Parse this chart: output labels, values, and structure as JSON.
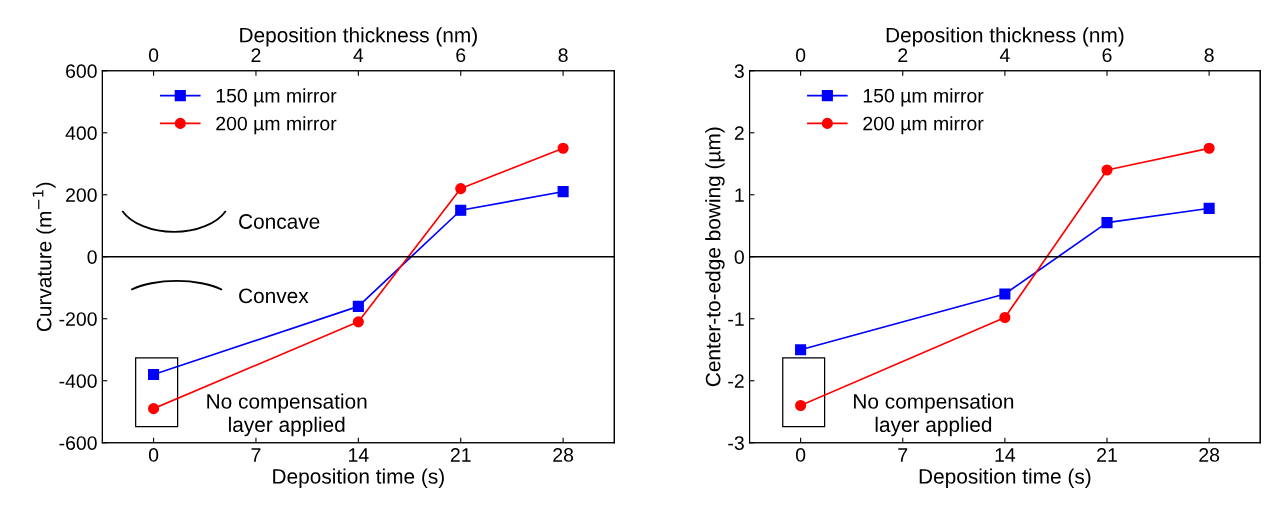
{
  "chart_data": [
    {
      "type": "line",
      "xlabel": "Deposition time (s)",
      "ylabel": "Curvature (m$^{−1}$)",
      "x2label": "Deposition thickness (nm)",
      "x": [
        0,
        14,
        21,
        28
      ],
      "xlim": [
        -3.5,
        31.5
      ],
      "xticks": [
        0,
        7,
        14,
        21,
        28
      ],
      "x2lim": [
        -1,
        9
      ],
      "x2ticks": [
        0,
        2,
        4,
        6,
        8
      ],
      "ylim": [
        -600,
        600
      ],
      "yticks": [
        -600,
        -400,
        -200,
        0,
        200,
        400,
        600
      ],
      "legend": "top left",
      "grid": false,
      "series": [
        {
          "name": "150 µm mirror",
          "color": "#0000ff",
          "marker": "square",
          "values": [
            -380,
            -160,
            150,
            210
          ]
        },
        {
          "name": "200 µm mirror",
          "color": "#ff0000",
          "marker": "circle",
          "values": [
            -490,
            -210,
            220,
            350
          ]
        }
      ],
      "ref_lines": [
        {
          "axis": "y",
          "value": 0,
          "color": "#000000"
        }
      ],
      "annotations": [
        "Concave",
        "Convex",
        "No compensation\nlayer applied"
      ]
    },
    {
      "type": "line",
      "xlabel": "Deposition time (s)",
      "ylabel": "Center-to-edge bowing (µm)",
      "x2label": "Deposition thickness (nm)",
      "x": [
        0,
        14,
        21,
        28
      ],
      "xlim": [
        -3.5,
        31.5
      ],
      "xticks": [
        0,
        7,
        14,
        21,
        28
      ],
      "x2lim": [
        -1,
        9
      ],
      "x2ticks": [
        0,
        2,
        4,
        6,
        8
      ],
      "ylim": [
        -3,
        3
      ],
      "yticks": [
        -3,
        -2,
        -1,
        0,
        1,
        2,
        3
      ],
      "legend": "top left",
      "grid": false,
      "series": [
        {
          "name": "150 µm mirror",
          "color": "#0000ff",
          "marker": "square",
          "values": [
            -1.5,
            -0.6,
            0.55,
            0.78
          ]
        },
        {
          "name": "200 µm mirror",
          "color": "#ff0000",
          "marker": "circle",
          "values": [
            -2.4,
            -0.98,
            1.4,
            1.75
          ]
        }
      ],
      "ref_lines": [
        {
          "axis": "y",
          "value": 0,
          "color": "#000000"
        }
      ],
      "annotations": [
        "No compensation\nlayer applied"
      ]
    }
  ]
}
